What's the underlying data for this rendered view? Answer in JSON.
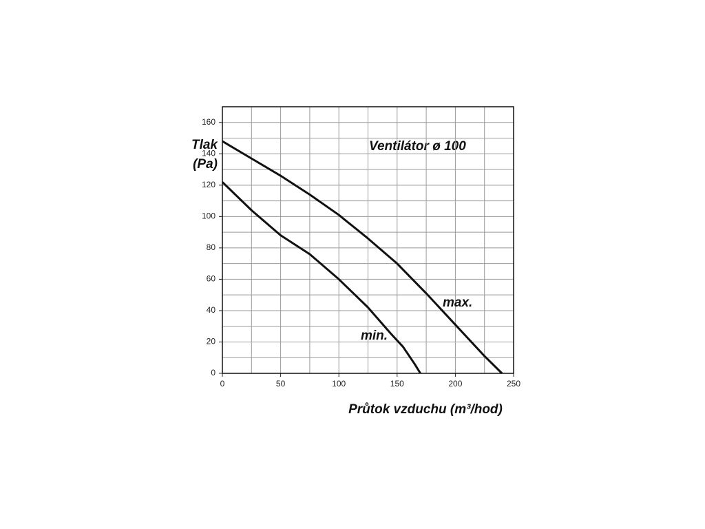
{
  "chart_data": {
    "type": "line",
    "title": "Ventilátor ø 100",
    "x_label": "Průtok vzduchu (m³/hod)",
    "y_label": [
      "Tlak",
      "(Pa)"
    ],
    "xlim": [
      0,
      250
    ],
    "ylim": [
      0,
      170
    ],
    "xticks": [
      0,
      50,
      100,
      150,
      200,
      250
    ],
    "yticks": [
      0,
      20,
      40,
      60,
      80,
      100,
      120,
      140,
      160
    ],
    "grid": true,
    "series": [
      {
        "name": "max.",
        "color": "#111111",
        "x": [
          0,
          25,
          50,
          75,
          100,
          125,
          150,
          175,
          200,
          225,
          240
        ],
        "values": [
          148,
          137,
          126,
          114,
          101,
          86,
          70,
          51,
          31,
          11,
          0
        ]
      },
      {
        "name": "min.",
        "color": "#111111",
        "x": [
          0,
          25,
          50,
          75,
          100,
          125,
          145,
          155,
          165,
          170
        ],
        "values": [
          122,
          104,
          88,
          76,
          60,
          42,
          25,
          17,
          6,
          0
        ]
      }
    ]
  }
}
